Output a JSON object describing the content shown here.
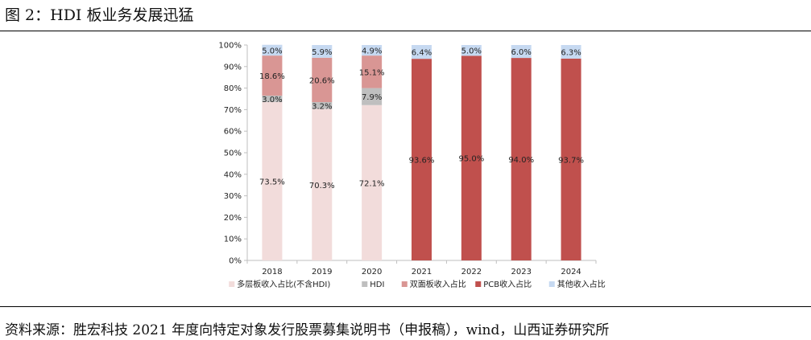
{
  "figure": {
    "title": "图 2：HDI 板业务发展迅猛",
    "source": "资料来源：胜宏科技 2021 年度向特定对象发行股票募集说明书（申报稿），wind，山西证券研究所"
  },
  "chart_data": {
    "type": "bar",
    "stacked": true,
    "categories": [
      "2018",
      "2019",
      "2020",
      "2021",
      "2022",
      "2023",
      "2024"
    ],
    "ylim": [
      0,
      100
    ],
    "y_ticks": [
      "0%",
      "10%",
      "20%",
      "30%",
      "40%",
      "50%",
      "60%",
      "70%",
      "80%",
      "90%",
      "100%"
    ],
    "grid": false,
    "legend_position": "bottom",
    "series": [
      {
        "name": "多层板收入占比(不含HDI)",
        "color": "#f2dcdb",
        "values": [
          73.5,
          70.3,
          72.1,
          0,
          0,
          0,
          0
        ],
        "labels": [
          "73.5%",
          "70.3%",
          "72.1%",
          "",
          "",
          "",
          ""
        ]
      },
      {
        "name": "HDI",
        "color": "#bfbfbf",
        "values": [
          3.0,
          3.2,
          7.9,
          0,
          0,
          0,
          0
        ],
        "labels": [
          "3.0%",
          "3.2%",
          "7.9%",
          "",
          "",
          "",
          ""
        ]
      },
      {
        "name": "双面板收入占比",
        "color": "#d99694",
        "values": [
          18.6,
          20.6,
          15.1,
          0,
          0,
          0,
          0
        ],
        "labels": [
          "18.6%",
          "20.6%",
          "15.1%",
          "",
          "",
          "",
          ""
        ]
      },
      {
        "name": "PCB收入占比",
        "color": "#c0504d",
        "values": [
          0,
          0,
          0,
          93.6,
          95.0,
          94.0,
          93.7
        ],
        "labels": [
          "",
          "",
          "",
          "93.6%",
          "95.0%",
          "94.0%",
          "93.7%"
        ]
      },
      {
        "name": "其他收入占比",
        "color": "#c6d9f1",
        "values": [
          5.0,
          5.9,
          4.9,
          6.4,
          5.0,
          6.0,
          6.3
        ],
        "labels": [
          "5.0%",
          "5.9%",
          "4.9%",
          "6.4%",
          "5.0%",
          "6.0%",
          "6.3%"
        ]
      }
    ]
  }
}
